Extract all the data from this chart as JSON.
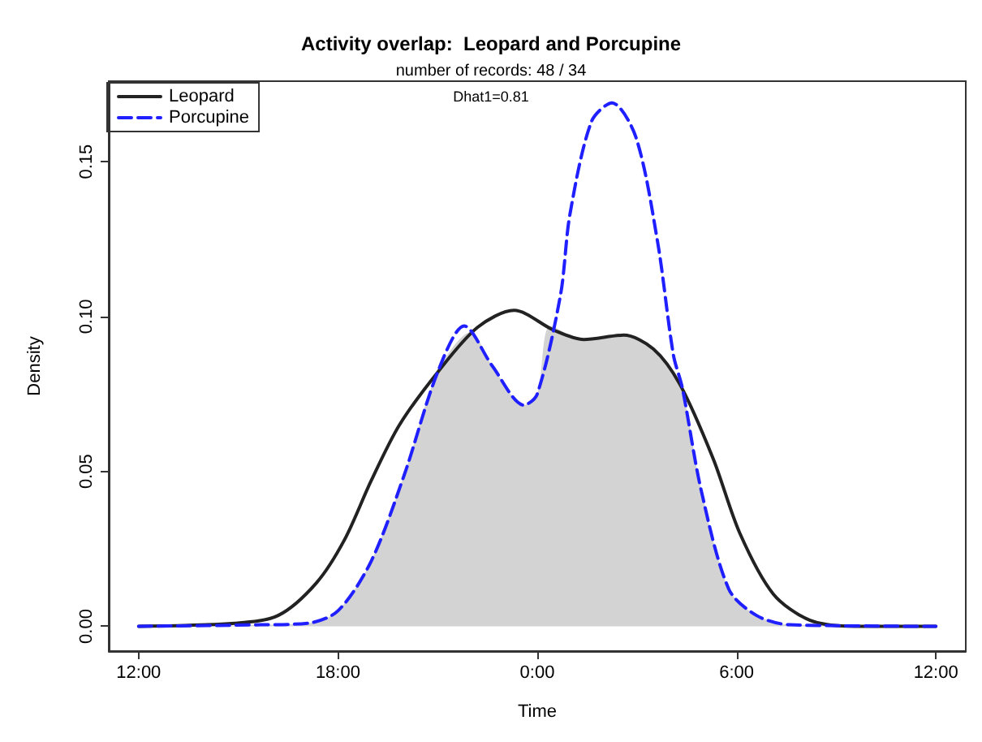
{
  "chart_data": {
    "type": "line",
    "title": "Activity overlap:  Leopard and Porcupine",
    "subtitle": "number of records: 48 / 34",
    "xlabel": "Time",
    "ylabel": "Density",
    "annotations": [
      "Dhat1=0.81"
    ],
    "xlim": [
      "--01-01T11:06",
      "--01-02T12:54"
    ],
    "xticks": [
      {
        "value": "--01-01T12:00",
        "label": "12:00"
      },
      {
        "value": "--01-01T18:00",
        "label": "18:00"
      },
      {
        "value": "--01-02T00:00",
        "label": "0:00"
      },
      {
        "value": "--01-02T06:00",
        "label": "6:00"
      },
      {
        "value": "--01-02T12:00",
        "label": "12:00"
      }
    ],
    "ylim": [
      -0.008,
      0.176
    ],
    "yticks": [
      {
        "value": 0,
        "label": "0.00"
      },
      {
        "value": 0.05,
        "label": "0.05"
      },
      {
        "value": 0.1,
        "label": "0.10"
      },
      {
        "value": 0.15,
        "label": "0.15"
      }
    ],
    "grid": false,
    "legend": "top left",
    "marker": "none",
    "series": [
      {
        "type": "area",
        "color": "#d3d3d3",
        "x": [
          "--01-01T12:00",
          "--01-01T17:06",
          "--01-01T18:00",
          "--01-01T19:00",
          "--01-01T20:00",
          "--01-01T21:00",
          "--01-01T22:00",
          "--01-01T22:39",
          "--01-01T23:36",
          "--01-02T00:00",
          "--01-02T00:24",
          "--01-02T01:24",
          "--01-02T02:36",
          "--01-02T03:30",
          "--01-02T04:18",
          "--01-02T04:56",
          "--01-02T05:46",
          "--01-02T06:36",
          "--01-02T07:36",
          "--01-02T12:00"
        ],
        "values": [
          0,
          0.001,
          0.005,
          0.021,
          0.049,
          0.082,
          0.095,
          0.084,
          0.0714,
          0.075,
          0.097,
          0.0926,
          0.094,
          0.0895,
          0.078,
          0.044,
          0.012,
          0.0035,
          0.0005,
          0
        ]
      },
      {
        "name": "Leopard",
        "color": "#222222",
        "line_style": "solid",
        "x": [
          "--01-01T12:00",
          "--01-01T14:54",
          "--01-01T16:12",
          "--01-01T17:21",
          "--01-01T18:12",
          "--01-01T19:00",
          "--01-01T19:51",
          "--01-01T21:00",
          "--01-01T22:12",
          "--01-01T23:18",
          "--01-02T00:30",
          "--01-02T01:24",
          "--01-02T02:36",
          "--01-02T03:30",
          "--01-02T04:18",
          "--01-02T05:18",
          "--01-02T06:06",
          "--01-02T07:06",
          "--01-02T08:12",
          "--01-02T09:33",
          "--01-02T12:00"
        ],
        "values": [
          0,
          0.001,
          0.0035,
          0.014,
          0.028,
          0.047,
          0.065,
          0.082,
          0.0965,
          0.102,
          0.0956,
          0.0926,
          0.094,
          0.0895,
          0.078,
          0.054,
          0.03,
          0.0105,
          0.002,
          0,
          0
        ]
      },
      {
        "name": "Porcupine",
        "color": "#1f1fff",
        "line_style": "dashed",
        "x": [
          "--01-01T12:00",
          "--01-01T15:42",
          "--01-01T17:06",
          "--01-01T18:00",
          "--01-01T19:00",
          "--01-01T20:00",
          "--01-01T21:00",
          "--01-01T21:48",
          "--01-01T22:39",
          "--01-01T23:36",
          "--01-02T00:00",
          "--01-02T00:42",
          "--01-02T00:59",
          "--01-02T01:38",
          "--01-02T02:15",
          "--01-02T02:58",
          "--01-02T03:37",
          "--01-02T04:06",
          "--01-02T04:22",
          "--01-02T04:56",
          "--01-02T05:46",
          "--01-02T06:36",
          "--01-02T07:36",
          "--01-02T12:00"
        ],
        "values": [
          0,
          0.0005,
          0.001,
          0.005,
          0.021,
          0.049,
          0.082,
          0.097,
          0.084,
          0.0714,
          0.075,
          0.107,
          0.133,
          0.163,
          0.169,
          0.158,
          0.1245,
          0.0875,
          0.077,
          0.044,
          0.012,
          0.0035,
          0.0005,
          0
        ]
      }
    ]
  }
}
